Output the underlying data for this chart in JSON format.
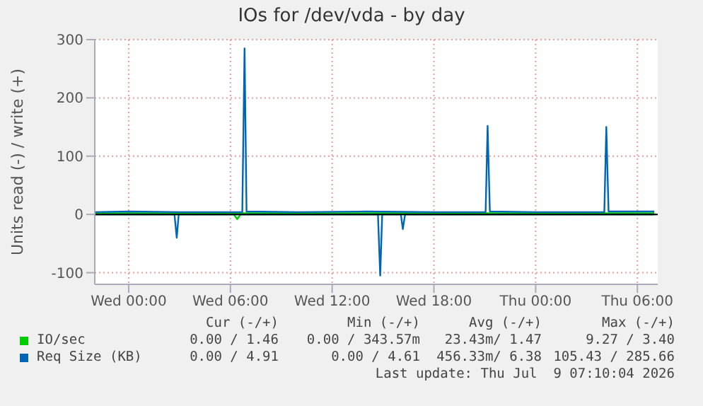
{
  "chart_data": {
    "type": "line",
    "title": "IOs for /dev/vda - by day",
    "ylabel": "Units read (-) / write (+)",
    "xlim": [
      "2026-07-07T22:00",
      "2026-07-09T07:12"
    ],
    "xticks": [
      {
        "value": "2026-07-08T00:00",
        "label": "Wed 00:00"
      },
      {
        "value": "2026-07-08T06:00",
        "label": "Wed 06:00"
      },
      {
        "value": "2026-07-08T12:00",
        "label": "Wed 12:00"
      },
      {
        "value": "2026-07-08T18:00",
        "label": "Wed 18:00"
      },
      {
        "value": "2026-07-09T00:00",
        "label": "Thu 00:00"
      },
      {
        "value": "2026-07-09T06:00",
        "label": "Thu 06:00"
      }
    ],
    "ylim": [
      -120,
      300
    ],
    "yticks": [
      -100,
      0,
      100,
      200,
      300
    ],
    "grid": true,
    "legend": "bottom",
    "series": [
      {
        "name": "IO/sec",
        "color": "#00cc00",
        "x": [
          "2026-07-07T22:00",
          "2026-07-08T04:00",
          "2026-07-08T10:00",
          "2026-07-08T16:00",
          "2026-07-08T22:00",
          "2026-07-09T04:00",
          "2026-07-09T07:00"
        ],
        "values": [
          2,
          2,
          2,
          2,
          2,
          2,
          2
        ]
      },
      {
        "color": "#00cc00",
        "x": [
          "2026-07-07T22:00",
          "2026-07-08T06:12",
          "2026-07-08T06:24",
          "2026-07-08T06:36",
          "2026-07-09T07:00"
        ],
        "values": [
          0,
          0,
          -8,
          0,
          0
        ]
      },
      {
        "name": "Req Size (KB)",
        "color": "#0066b3",
        "x": [
          "2026-07-07T22:00",
          "2026-07-08T00:00",
          "2026-07-08T03:00",
          "2026-07-08T06:42",
          "2026-07-08T06:50",
          "2026-07-08T06:57",
          "2026-07-08T10:00",
          "2026-07-08T14:00",
          "2026-07-08T18:00",
          "2026-07-08T21:03",
          "2026-07-08T21:10",
          "2026-07-08T21:18",
          "2026-07-09T00:00",
          "2026-07-09T04:03",
          "2026-07-09T04:10",
          "2026-07-09T04:18",
          "2026-07-09T07:00"
        ],
        "values": [
          4,
          5,
          4,
          4,
          285,
          5,
          4,
          5,
          4,
          4,
          152,
          5,
          4,
          4,
          150,
          5,
          5
        ]
      },
      {
        "color": "#0066b3",
        "x": [
          "2026-07-07T22:00",
          "2026-07-08T02:42",
          "2026-07-08T02:50",
          "2026-07-08T02:57",
          "2026-07-08T14:42",
          "2026-07-08T14:50",
          "2026-07-08T14:57",
          "2026-07-08T16:03",
          "2026-07-08T16:10",
          "2026-07-08T16:18",
          "2026-07-09T07:00"
        ],
        "values": [
          0,
          0,
          -40,
          0,
          0,
          -105,
          0,
          0,
          -25,
          0,
          0
        ]
      }
    ],
    "ref_lines": [
      {
        "axis": "y",
        "value": 0,
        "color": "#000000"
      }
    ],
    "annotations": [
      "Cur (-/+)",
      "Min (-/+)",
      "Avg (-/+)",
      "Max (-/+)",
      "0.00 / 1.46",
      "0.00 / 343.57m",
      "23.43m/ 1.47",
      "9.27 / 3.40",
      "0.00 / 4.91",
      "0.00 / 4.61",
      "456.33m/ 6.38",
      "105.43 / 285.66",
      "Last update: Thu Jul  9 07:10:04 2026"
    ]
  }
}
